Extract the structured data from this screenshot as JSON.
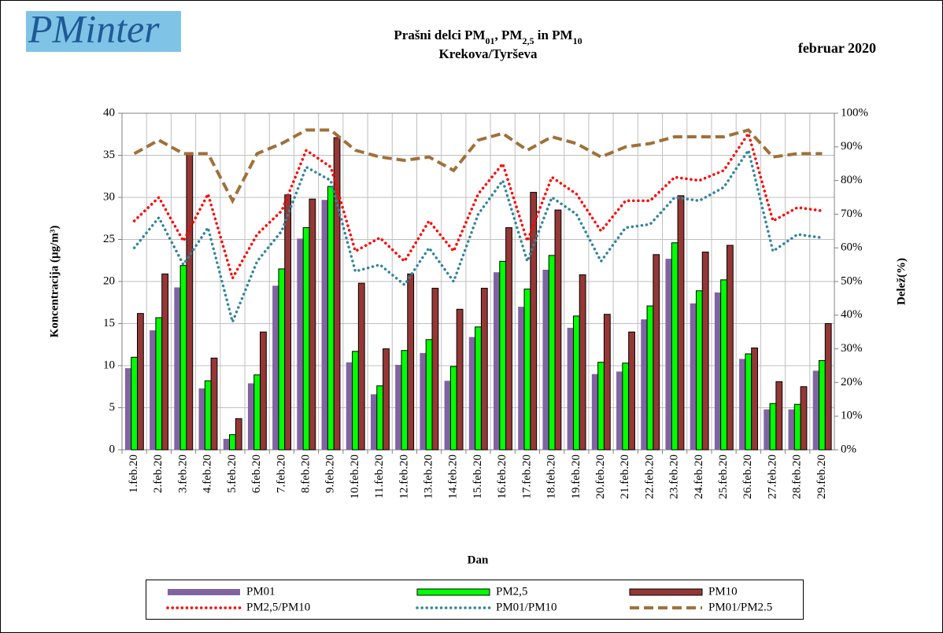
{
  "chart_data": {
    "type": "bar",
    "logo": "PMinter",
    "title": [
      "Prašni delci PM",
      "01",
      ", PM",
      "2,5",
      " in PM",
      "10"
    ],
    "subtitle": "Krekova/Tyrševa",
    "period": "februar 2020",
    "y_label": "Koncentracija  (µg/m³)",
    "y2_label": "Delež(%)",
    "x_label": "Dan",
    "categories": [
      "1.feb.20",
      "2.feb.20",
      "3.feb.20",
      "4.feb.20",
      "5.feb.20",
      "6.feb.20",
      "7.feb.20",
      "8.feb.20",
      "9.feb.20",
      "10.feb.20",
      "11.feb.20",
      "12.feb.20",
      "13.feb.20",
      "14.feb.20",
      "15.feb.20",
      "16.feb.20",
      "17.feb.20",
      "18.feb.20",
      "19.feb.20",
      "20.feb.20",
      "21.feb.20",
      "22.feb.20",
      "23.feb.20",
      "24.feb.20",
      "25.feb.20",
      "26.feb.20",
      "27.feb.20",
      "28.feb.20",
      "29.feb.20"
    ],
    "ylim": [
      0,
      40
    ],
    "yticks": [
      0,
      5,
      10,
      15,
      20,
      25,
      30,
      35,
      40
    ],
    "y2lim": [
      0,
      100
    ],
    "y2ticks": [
      {
        "value": 0,
        "label": "0%"
      },
      {
        "value": 10,
        "label": "10%"
      },
      {
        "value": 20,
        "label": "20%"
      },
      {
        "value": 30,
        "label": "30%"
      },
      {
        "value": 40,
        "label": "40%"
      },
      {
        "value": 50,
        "label": "50%"
      },
      {
        "value": 60,
        "label": "60%"
      },
      {
        "value": 70,
        "label": "70%"
      },
      {
        "value": 80,
        "label": "80%"
      },
      {
        "value": 90,
        "label": "90%"
      },
      {
        "value": 100,
        "label": "100%"
      }
    ],
    "grid": true,
    "series": [
      {
        "name": "PM01",
        "type": "bar",
        "color": "#8064a2",
        "values": [
          9.7,
          14.2,
          19.3,
          7.3,
          1.3,
          7.9,
          19.5,
          25.1,
          29.7,
          10.4,
          6.6,
          10.1,
          11.5,
          8.2,
          13.4,
          21.1,
          17.0,
          21.4,
          14.5,
          9.0,
          9.3,
          15.5,
          22.7,
          17.4,
          18.7,
          10.8,
          4.8,
          4.8,
          9.4
        ]
      },
      {
        "name": "PM2,5",
        "type": "bar",
        "color": "#00ff00",
        "values": [
          11.0,
          15.7,
          21.9,
          8.2,
          1.8,
          8.9,
          21.5,
          26.4,
          31.3,
          11.7,
          7.6,
          11.8,
          13.1,
          9.9,
          14.6,
          22.4,
          19.1,
          23.1,
          15.9,
          10.4,
          10.3,
          17.1,
          24.6,
          18.9,
          20.2,
          11.4,
          5.5,
          5.4,
          10.6
        ]
      },
      {
        "name": "PM10",
        "type": "bar",
        "color": "#953735",
        "values": [
          16.2,
          20.9,
          35.3,
          10.9,
          3.7,
          14.0,
          30.3,
          29.8,
          37.1,
          19.8,
          12.0,
          20.9,
          19.2,
          16.7,
          19.2,
          26.4,
          30.6,
          28.5,
          20.8,
          16.1,
          14.0,
          23.2,
          30.2,
          23.5,
          24.3,
          12.1,
          8.1,
          7.5,
          15.0
        ]
      },
      {
        "name": "PM2,5/PM10",
        "type": "line",
        "axis": "y2",
        "dash": "dotted",
        "color": "#ff0000",
        "values": [
          68,
          75,
          62,
          76,
          51,
          64,
          71,
          89,
          84,
          59,
          63,
          56,
          68,
          59,
          76,
          85,
          62,
          81,
          76,
          65,
          74,
          74,
          81,
          80,
          83,
          94,
          68,
          72,
          71
        ]
      },
      {
        "name": "PM01/PM10",
        "type": "line",
        "axis": "y2",
        "dash": "dotted",
        "color": "#31859c",
        "values": [
          60,
          69,
          55,
          66,
          38,
          56,
          65,
          84,
          80,
          53,
          55,
          49,
          60,
          50,
          70,
          80,
          56,
          75,
          70,
          56,
          66,
          67,
          75,
          74,
          78,
          89,
          59,
          64,
          63
        ]
      },
      {
        "name": "PM01/PM2.5",
        "type": "line",
        "axis": "y2",
        "dash": "dashed",
        "color": "#a0703a",
        "values": [
          88,
          92,
          88,
          88,
          74,
          88,
          91,
          95,
          95,
          89,
          87,
          86,
          87,
          83,
          92,
          94,
          89,
          93,
          91,
          87,
          90,
          91,
          93,
          93,
          93,
          95,
          87,
          88,
          88
        ]
      }
    ]
  }
}
